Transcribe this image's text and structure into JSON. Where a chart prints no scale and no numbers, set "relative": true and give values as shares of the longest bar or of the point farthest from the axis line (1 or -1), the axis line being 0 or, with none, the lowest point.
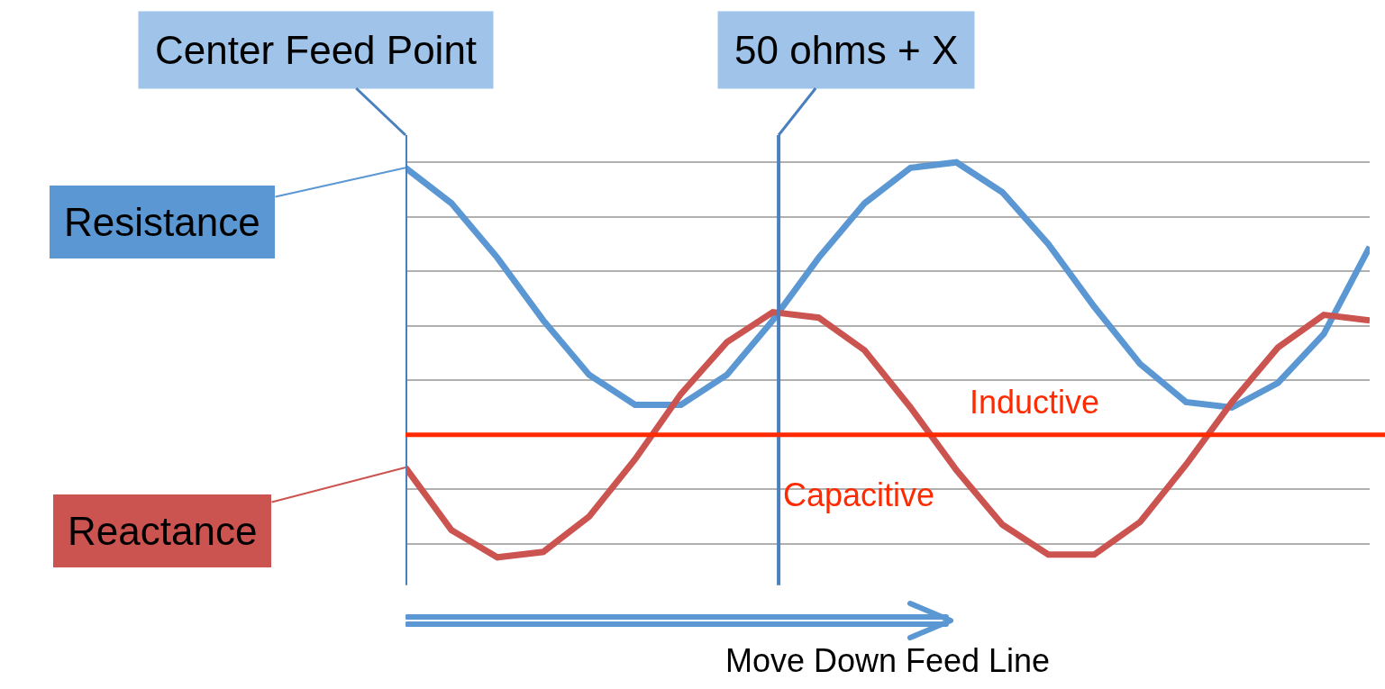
{
  "chart_data": {
    "type": "line",
    "relative": true,
    "xlabel": "Move Down Feed Line",
    "grid": "y",
    "legend": false,
    "marker": "none",
    "line_style": "solid",
    "categories": [
      null,
      null,
      null,
      null,
      null,
      null,
      null,
      null,
      null,
      null,
      null,
      null,
      null,
      null,
      null,
      null,
      null,
      null,
      null,
      null,
      null,
      null
    ],
    "series": [
      {
        "name": "Resistance",
        "color": "#5b97d2",
        "values": [
          0.98,
          0.85,
          0.65,
          0.42,
          0.22,
          0.11,
          0.11,
          0.22,
          0.42,
          0.65,
          0.85,
          0.98,
          1,
          0.89,
          0.7,
          0.47,
          0.26,
          0.12,
          0.1,
          0.19,
          0.37,
          0.69
        ]
      },
      {
        "name": "Reactance",
        "color": "#cc5450",
        "values": [
          -0.12,
          -0.35,
          -0.45,
          -0.43,
          -0.3,
          -0.09,
          0.15,
          0.34,
          0.45,
          0.43,
          0.31,
          0.1,
          -0.13,
          -0.33,
          -0.44,
          -0.44,
          -0.32,
          -0.11,
          0.12,
          0.32,
          0.44,
          0.42
        ]
      }
    ],
    "ref_lines": [
      {
        "axis": "x",
        "label": "Center Feed Point",
        "color": "#4a80bd"
      },
      {
        "axis": "x",
        "label": "50 ohms + X",
        "color": "#4a80bd"
      },
      {
        "axis": "y",
        "value": 0,
        "color": "#ff2a00"
      }
    ],
    "annotations": [
      "Inductive",
      "Capacitive"
    ]
  }
}
